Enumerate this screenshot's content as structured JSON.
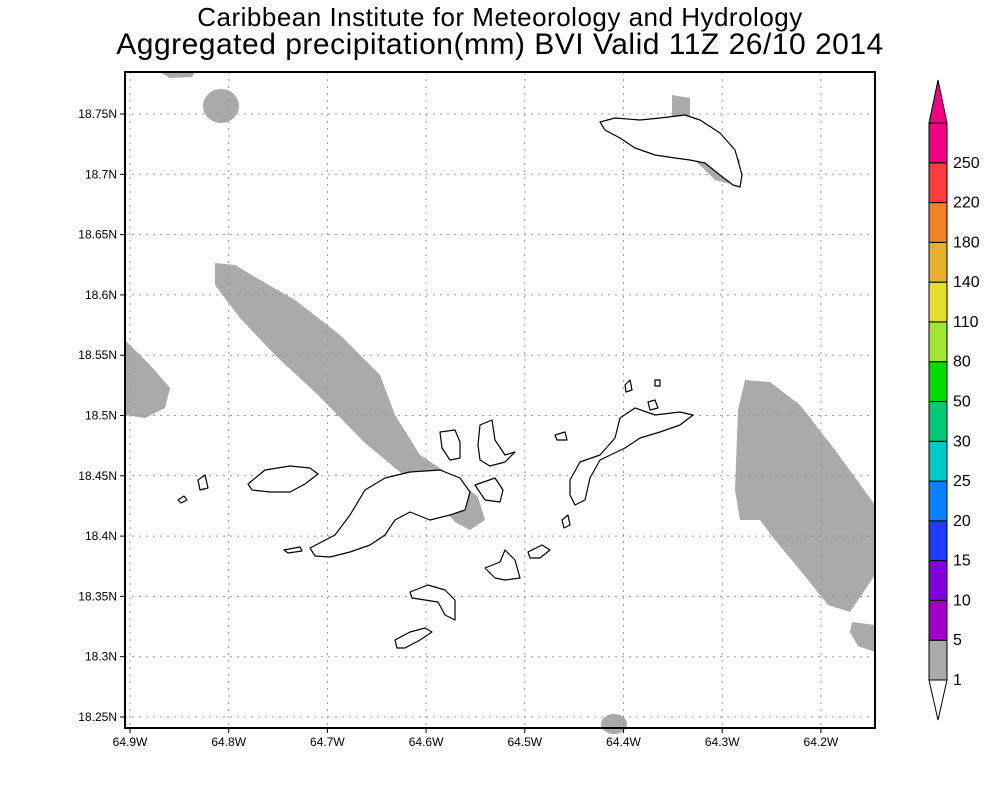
{
  "title": {
    "line1": "Caribbean Institute for Meteorology and Hydrology",
    "line2": "Aggregated precipitation(mm) BVI Valid 11Z 26/10 2014"
  },
  "map": {
    "lon_ticks": [
      "64.9W",
      "64.8W",
      "64.7W",
      "64.6W",
      "64.5W",
      "64.4W",
      "64.3W",
      "64.2W"
    ],
    "lat_ticks": [
      "18.75N",
      "18.7N",
      "18.65N",
      "18.6N",
      "18.55N",
      "18.5N",
      "18.45N",
      "18.4N",
      "18.35N",
      "18.3N",
      "18.25N"
    ],
    "precip_fill_color": "#aaaaaa",
    "land_color": "#ffffff",
    "grid": true
  },
  "colorbar": {
    "levels": [
      "1",
      "5",
      "10",
      "15",
      "20",
      "25",
      "30",
      "50",
      "80",
      "110",
      "140",
      "180",
      "220",
      "250"
    ],
    "colors": [
      "#aaaaaa",
      "#a000c8",
      "#8200dc",
      "#1e3cff",
      "#0a82ff",
      "#00c8c8",
      "#00c878",
      "#00dc00",
      "#a0e632",
      "#e6dc32",
      "#e6af2d",
      "#f08228",
      "#fa3c3c",
      "#f00082"
    ]
  }
}
